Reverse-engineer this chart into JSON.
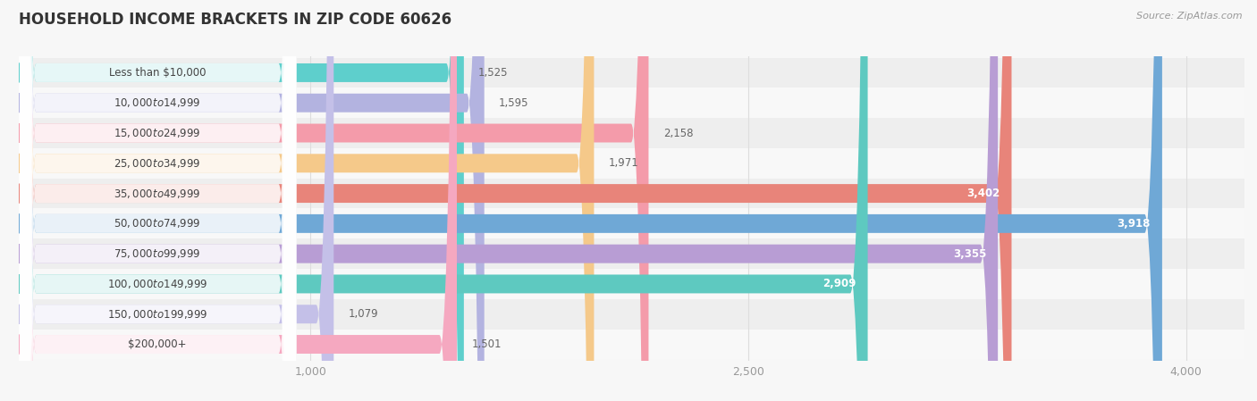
{
  "title": "HOUSEHOLD INCOME BRACKETS IN ZIP CODE 60626",
  "source": "Source: ZipAtlas.com",
  "categories": [
    "Less than $10,000",
    "$10,000 to $14,999",
    "$15,000 to $24,999",
    "$25,000 to $34,999",
    "$35,000 to $49,999",
    "$50,000 to $74,999",
    "$75,000 to $99,999",
    "$100,000 to $149,999",
    "$150,000 to $199,999",
    "$200,000+"
  ],
  "values": [
    1525,
    1595,
    2158,
    1971,
    3402,
    3918,
    3355,
    2909,
    1079,
    1501
  ],
  "colors": [
    "#5ecfcc",
    "#b3b3e0",
    "#f49baa",
    "#f5c98a",
    "#e8847a",
    "#6fa8d6",
    "#b89dd4",
    "#5ec9c0",
    "#c4c0e8",
    "#f5a8c0"
  ],
  "xlim_max": 4200,
  "xticks": [
    1000,
    2500,
    4000
  ],
  "xtick_labels": [
    "1,000",
    "2,500",
    "4,000"
  ],
  "bar_height": 0.62,
  "label_fontsize": 8.5,
  "value_fontsize": 8.5,
  "title_fontsize": 12,
  "source_fontsize": 8,
  "row_bg_even": "#eeeeee",
  "row_bg_odd": "#f8f8f8",
  "fig_bg": "#f7f7f7",
  "grid_color": "#dddddd",
  "value_threshold": 2500
}
